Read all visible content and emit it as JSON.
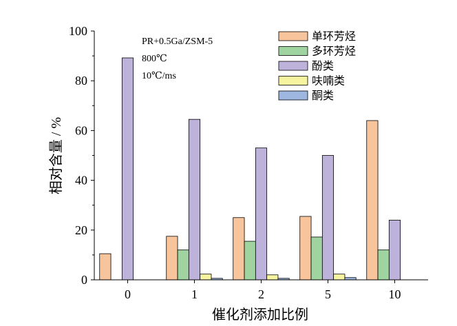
{
  "chart_data": {
    "type": "bar",
    "xlabel": "催化剂添加比例",
    "ylabel": "相对含量 / %",
    "ylim": [
      0,
      100
    ],
    "yticks": [
      0,
      20,
      40,
      60,
      80,
      100
    ],
    "categories": [
      "0",
      "1",
      "2",
      "5",
      "10"
    ],
    "annotations": [
      "PR+0.5Ga/ZSM-5",
      "800℃",
      "10℃/ms"
    ],
    "legend_position": "top-right",
    "series": [
      {
        "name": "单环芳烃",
        "color": "#F8C49C",
        "values": [
          10.5,
          17.5,
          25,
          25.5,
          64
        ]
      },
      {
        "name": "多环芳烃",
        "color": "#9FD39F",
        "values": [
          0,
          12,
          15.5,
          17.2,
          12
        ]
      },
      {
        "name": "酚类",
        "color": "#BDB2D9",
        "values": [
          89.2,
          64.5,
          53,
          50,
          24
        ]
      },
      {
        "name": "呋喃类",
        "color": "#F7F4A0",
        "values": [
          0,
          2.3,
          2,
          2.3,
          0
        ]
      },
      {
        "name": "酮类",
        "color": "#9EB7E0",
        "values": [
          0,
          0.6,
          0.6,
          0.9,
          0
        ]
      }
    ]
  }
}
